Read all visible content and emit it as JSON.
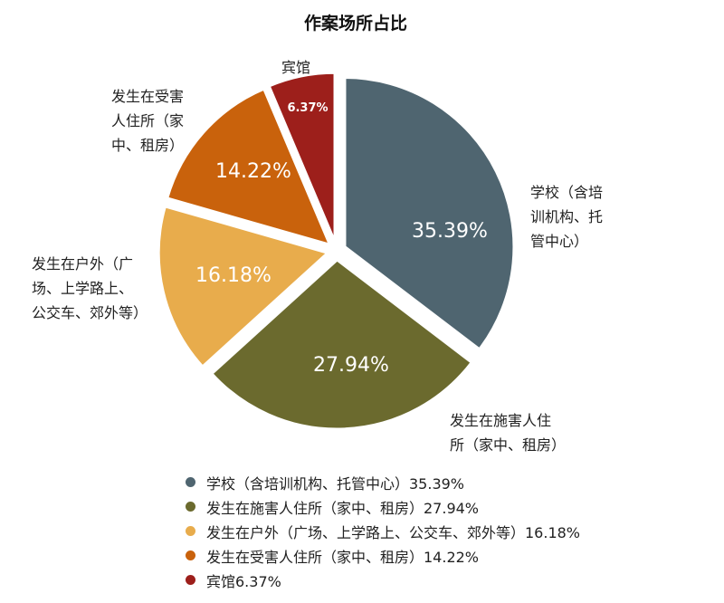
{
  "chart_data": {
    "type": "pie",
    "title": "作案场所占比",
    "slices": [
      {
        "outer_label": [
          "学校（含培",
          "训机构、托",
          "管中心）"
        ],
        "value": 35.39,
        "data_label": "35.39%",
        "color": "#4f6570",
        "legend": "学校（含培训机构、托管中心）35.39%"
      },
      {
        "outer_label": [
          "发生在施害人住",
          "所（家中、租房）"
        ],
        "value": 27.94,
        "data_label": "27.94%",
        "color": "#6b6a2e",
        "legend": "发生在施害人住所（家中、租房）27.94%"
      },
      {
        "outer_label": [
          "发生在户外（广",
          "场、上学路上、",
          "公交车、郊外等）"
        ],
        "value": 16.18,
        "data_label": "16.18%",
        "color": "#e8ac4c",
        "legend": "发生在户外（广场、上学路上、公交车、郊外等）16.18%"
      },
      {
        "outer_label": [
          "发生在受害",
          "人住所（家",
          "中、租房）"
        ],
        "value": 14.22,
        "data_label": "14.22%",
        "color": "#c9620c",
        "legend": "发生在受害人住所（家中、租房）14.22%"
      },
      {
        "outer_label": [
          "宾馆"
        ],
        "value": 6.37,
        "data_label": "6.37%",
        "color": "#9d1f1b",
        "legend": "宾馆6.37%"
      }
    ],
    "legend_position": "bottom"
  }
}
